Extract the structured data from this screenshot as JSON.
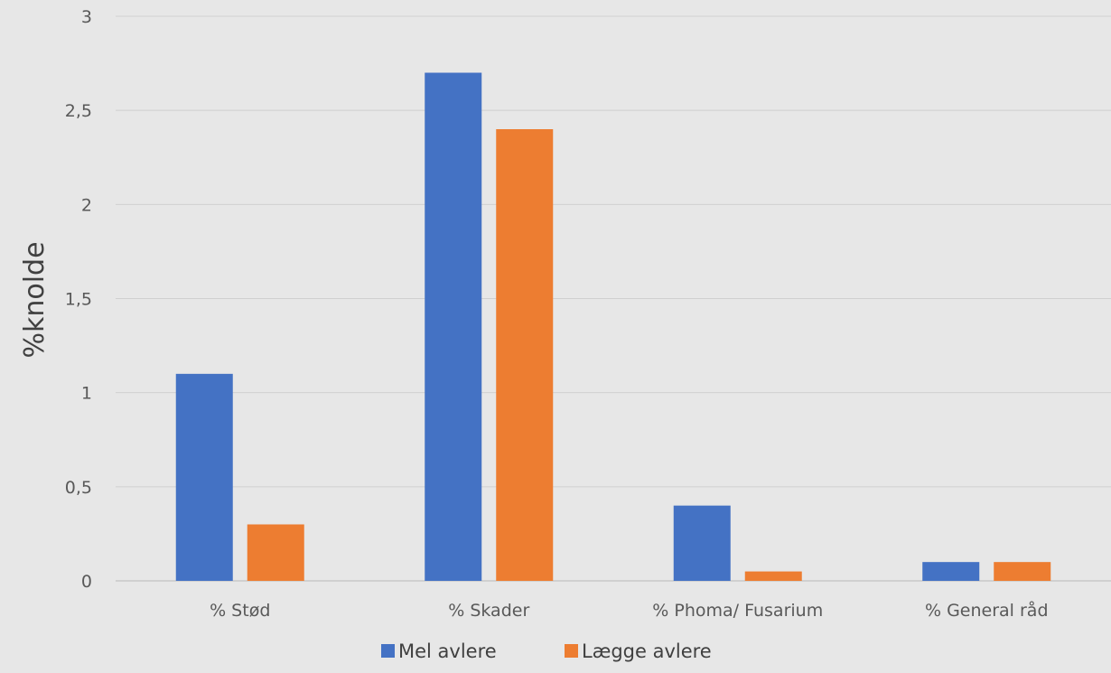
{
  "colors": {
    "background": "#e7e7e7",
    "series_1": "#4472c4",
    "series_2": "#ed7d31",
    "grid": "#d0d0d0"
  },
  "chart_data": {
    "type": "bar",
    "title": "",
    "xlabel": "",
    "ylabel": "%knolde",
    "categories": [
      "% Stød",
      "% Skader",
      "% Phoma/ Fusarium",
      "% General råd"
    ],
    "series": [
      {
        "name": "Mel avlere",
        "color": "#4472c4",
        "values": [
          1.1,
          2.7,
          0.4,
          0.1
        ]
      },
      {
        "name": "Lægge avlere",
        "color": "#ed7d31",
        "values": [
          0.3,
          2.4,
          0.05,
          0.1
        ]
      }
    ],
    "ylim": [
      0,
      3
    ],
    "yticks": [
      "0",
      "0,5",
      "1",
      "1,5",
      "2",
      "2,5",
      "3"
    ],
    "ytick_values": [
      0,
      0.5,
      1,
      1.5,
      2,
      2.5,
      3
    ],
    "grid": true,
    "legend_position": "bottom"
  }
}
